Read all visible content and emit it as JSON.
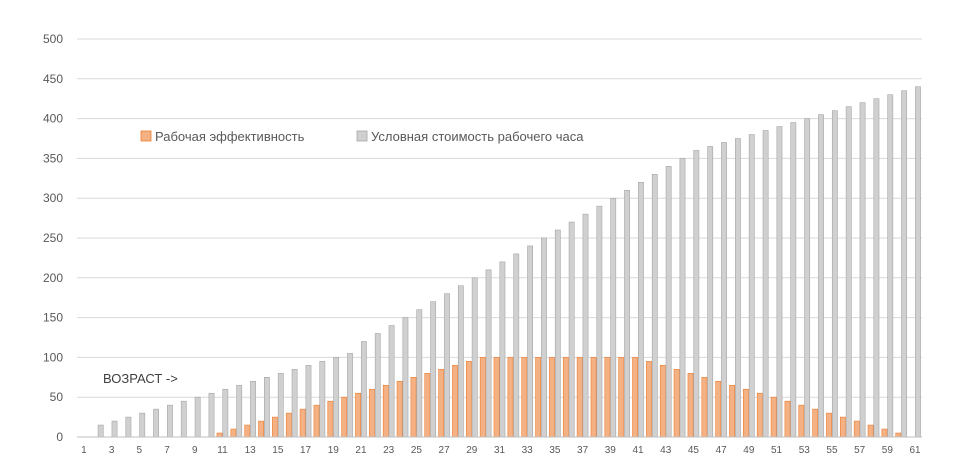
{
  "chart_data": {
    "type": "bar",
    "categories": [
      1,
      2,
      3,
      4,
      5,
      6,
      7,
      8,
      9,
      10,
      11,
      12,
      13,
      14,
      15,
      16,
      17,
      18,
      19,
      20,
      21,
      22,
      23,
      24,
      25,
      26,
      27,
      28,
      29,
      30,
      31,
      32,
      33,
      34,
      35,
      36,
      37,
      38,
      39,
      40,
      41,
      42,
      43,
      44,
      45,
      46,
      47,
      48,
      49,
      50,
      51,
      52,
      53,
      54,
      55,
      56,
      57,
      58,
      59,
      60,
      61
    ],
    "x_tick_labels": [
      "1",
      "3",
      "5",
      "7",
      "9",
      "11",
      "13",
      "15",
      "17",
      "19",
      "21",
      "23",
      "25",
      "27",
      "29",
      "31",
      "33",
      "35",
      "37",
      "39",
      "41",
      "43",
      "45",
      "47",
      "49",
      "51",
      "53",
      "55",
      "57",
      "59",
      "61"
    ],
    "series": [
      {
        "name": "Рабочая эффективность",
        "color": "#F4B183",
        "stroke": "#ED7D31",
        "values": [
          0,
          0,
          0,
          0,
          0,
          0,
          0,
          0,
          0,
          0,
          5,
          10,
          15,
          20,
          25,
          30,
          35,
          40,
          45,
          50,
          55,
          60,
          65,
          70,
          75,
          80,
          85,
          90,
          95,
          100,
          100,
          100,
          100,
          100,
          100,
          100,
          100,
          100,
          100,
          100,
          100,
          95,
          90,
          85,
          80,
          75,
          70,
          65,
          60,
          55,
          50,
          45,
          40,
          35,
          30,
          25,
          20,
          15,
          10,
          5,
          0
        ]
      },
      {
        "name": "Условная стоимость рабочего часа",
        "color": "#D0D0D0",
        "stroke": "#A6A6A6",
        "values": [
          0,
          15,
          20,
          25,
          30,
          35,
          40,
          45,
          50,
          55,
          60,
          65,
          70,
          75,
          80,
          85,
          90,
          95,
          100,
          105,
          120,
          130,
          140,
          150,
          160,
          170,
          180,
          190,
          200,
          210,
          220,
          230,
          240,
          250,
          260,
          270,
          280,
          290,
          300,
          310,
          320,
          330,
          340,
          350,
          360,
          365,
          370,
          375,
          380,
          385,
          390,
          395,
          400,
          405,
          410,
          415,
          420,
          425,
          430,
          435,
          440
        ]
      }
    ],
    "ylim": [
      0,
      500
    ],
    "y_ticks": [
      0,
      50,
      100,
      150,
      200,
      250,
      300,
      350,
      400,
      450,
      500
    ],
    "grid": true,
    "legend_position": "top-left",
    "annotation": "ВОЗРАСТ ->",
    "title": "",
    "xlabel": "",
    "ylabel": ""
  }
}
